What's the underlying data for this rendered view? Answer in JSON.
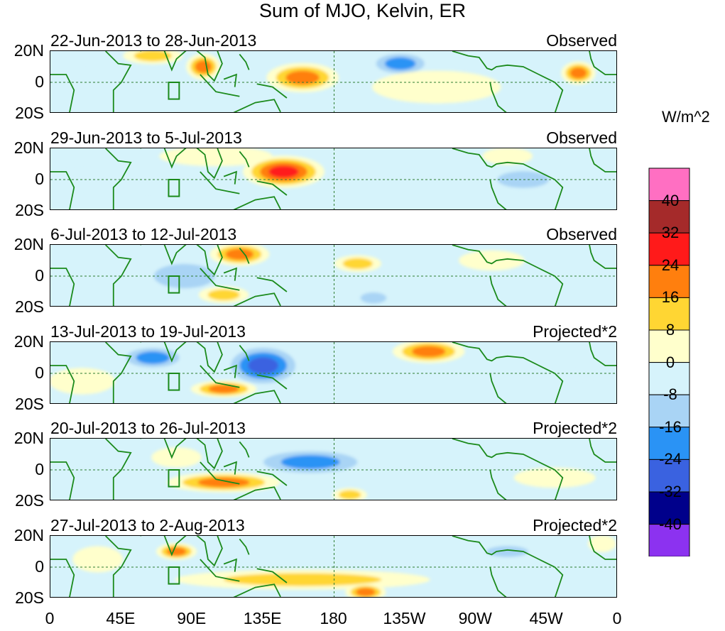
{
  "chart_data": {
    "type": "heatmap",
    "title": "Sum of MJO, Kelvin, ER",
    "units": "W/m^2",
    "x_tick_labels": [
      "0",
      "45E",
      "90E",
      "135E",
      "180",
      "135W",
      "90W",
      "45W",
      "0"
    ],
    "y_tick_labels": [
      "20N",
      "0",
      "20S"
    ],
    "xlim": [
      0,
      360
    ],
    "ylim": [
      -20,
      20
    ],
    "colorbar": {
      "levels": [
        40,
        32,
        24,
        16,
        8,
        0,
        -8,
        -16,
        -24,
        -32,
        -40
      ],
      "colors": [
        "#ff6fc2",
        "#a52a2a",
        "#ff1a1a",
        "#ff7f0e",
        "#ffd633",
        "#ffffcc",
        "#d6f3fb",
        "#a9d4f5",
        "#2a93f5",
        "#3a62e0",
        "#00008b",
        "#8c32f0"
      ]
    },
    "panels": [
      {
        "date_range": "22-Jun-2013 to 28-Jun-2013",
        "kind": "Observed",
        "features": [
          {
            "lon": 65,
            "lat": 17,
            "rx": 18,
            "ry": 5,
            "value": 18
          },
          {
            "lon": 97,
            "lat": 10,
            "rx": 10,
            "ry": 8,
            "value": 20
          },
          {
            "lon": 160,
            "lat": 3,
            "rx": 22,
            "ry": 9,
            "value": 22
          },
          {
            "lon": 222,
            "lat": 12,
            "rx": 20,
            "ry": 8,
            "value": -26
          },
          {
            "lon": 335,
            "lat": 6,
            "rx": 10,
            "ry": 7,
            "value": 20
          },
          {
            "lon": 10,
            "lat": 5,
            "rx": 14,
            "ry": 12,
            "value": -10
          },
          {
            "lon": 245,
            "lat": -3,
            "rx": 40,
            "ry": 10,
            "value": 6
          }
        ]
      },
      {
        "date_range": "29-Jun-2013 to 5-Jul-2013",
        "kind": "Observed",
        "features": [
          {
            "lon": 148,
            "lat": 5,
            "rx": 25,
            "ry": 10,
            "value": 28
          },
          {
            "lon": 105,
            "lat": 15,
            "rx": 35,
            "ry": 6,
            "value": 10
          },
          {
            "lon": 80,
            "lat": -5,
            "rx": 30,
            "ry": 8,
            "value": -10
          },
          {
            "lon": 300,
            "lat": 0,
            "rx": 25,
            "ry": 8,
            "value": -12
          },
          {
            "lon": 290,
            "lat": 15,
            "rx": 15,
            "ry": 5,
            "value": 10
          },
          {
            "lon": 20,
            "lat": 0,
            "rx": 15,
            "ry": 10,
            "value": -10
          }
        ]
      },
      {
        "date_range": "6-Jul-2013 to 12-Jul-2013",
        "kind": "Observed",
        "features": [
          {
            "lon": 120,
            "lat": 14,
            "rx": 18,
            "ry": 7,
            "value": 26
          },
          {
            "lon": 85,
            "lat": 0,
            "rx": 30,
            "ry": 12,
            "value": -14
          },
          {
            "lon": 195,
            "lat": 8,
            "rx": 14,
            "ry": 5,
            "value": 18
          },
          {
            "lon": 205,
            "lat": -14,
            "rx": 12,
            "ry": 5,
            "value": -18
          },
          {
            "lon": 110,
            "lat": -12,
            "rx": 15,
            "ry": 5,
            "value": 14
          },
          {
            "lon": 280,
            "lat": 10,
            "rx": 20,
            "ry": 6,
            "value": 8
          }
        ]
      },
      {
        "date_range": "13-Jul-2013 to 19-Jul-2013",
        "kind": "Projected*2",
        "features": [
          {
            "lon": 135,
            "lat": 5,
            "rx": 25,
            "ry": 14,
            "value": -28
          },
          {
            "lon": 65,
            "lat": 10,
            "rx": 22,
            "ry": 8,
            "value": -20
          },
          {
            "lon": 240,
            "lat": 14,
            "rx": 22,
            "ry": 7,
            "value": 26
          },
          {
            "lon": 110,
            "lat": -10,
            "rx": 20,
            "ry": 5,
            "value": 20
          },
          {
            "lon": 20,
            "lat": -5,
            "rx": 20,
            "ry": 8,
            "value": 10
          },
          {
            "lon": 340,
            "lat": 0,
            "rx": 15,
            "ry": 6,
            "value": -8
          }
        ]
      },
      {
        "date_range": "20-Jul-2013 to 26-Jul-2013",
        "kind": "Projected*2",
        "features": [
          {
            "lon": 110,
            "lat": -8,
            "rx": 35,
            "ry": 6,
            "value": 26
          },
          {
            "lon": 165,
            "lat": 5,
            "rx": 40,
            "ry": 9,
            "value": -22
          },
          {
            "lon": 80,
            "lat": 8,
            "rx": 15,
            "ry": 6,
            "value": 10
          },
          {
            "lon": 320,
            "lat": -5,
            "rx": 25,
            "ry": 6,
            "value": 10
          },
          {
            "lon": 190,
            "lat": -16,
            "rx": 10,
            "ry": 4,
            "value": 18
          }
        ]
      },
      {
        "date_range": "27-Jul-2013 to 2-Aug-2013",
        "kind": "Projected*2",
        "features": [
          {
            "lon": 160,
            "lat": -8,
            "rx": 80,
            "ry": 6,
            "value": 12
          },
          {
            "lon": 200,
            "lat": -16,
            "rx": 12,
            "ry": 5,
            "value": 20
          },
          {
            "lon": 80,
            "lat": 10,
            "rx": 12,
            "ry": 5,
            "value": 20
          },
          {
            "lon": 290,
            "lat": 10,
            "rx": 20,
            "ry": 5,
            "value": -18
          },
          {
            "lon": 30,
            "lat": 5,
            "rx": 15,
            "ry": 8,
            "value": 8
          },
          {
            "lon": 350,
            "lat": 15,
            "rx": 8,
            "ry": 5,
            "value": 10
          }
        ]
      }
    ]
  }
}
